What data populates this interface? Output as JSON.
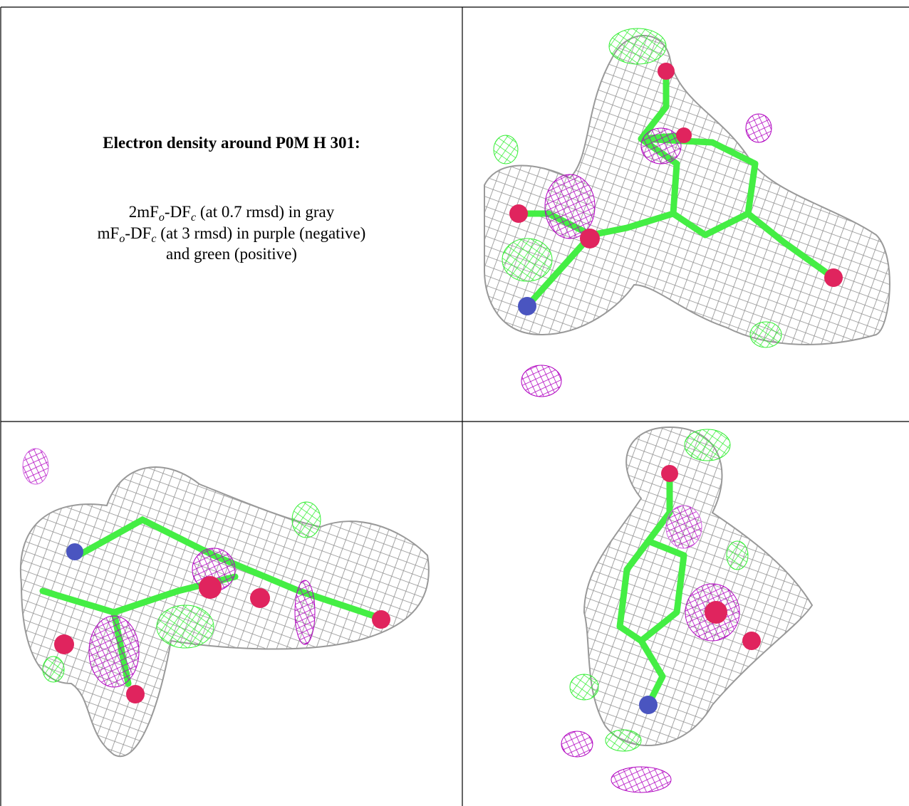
{
  "caption": {
    "title": "Electron density around P0M H 301:",
    "lines": [
      [
        {
          "text": "2mF"
        },
        {
          "text": "o",
          "sub": true
        },
        {
          "text": "-DF"
        },
        {
          "text": "c",
          "sub": true
        },
        {
          "text": " (at 0.7 rmsd) in gray"
        }
      ],
      [
        {
          "text": "mF"
        },
        {
          "text": "o",
          "sub": true
        },
        {
          "text": "-DF"
        },
        {
          "text": "c",
          "sub": true
        },
        {
          "text": " (at 3 rmsd) in purple (negative)"
        }
      ],
      [
        {
          "text": "and green (positive)"
        }
      ]
    ]
  }
}
